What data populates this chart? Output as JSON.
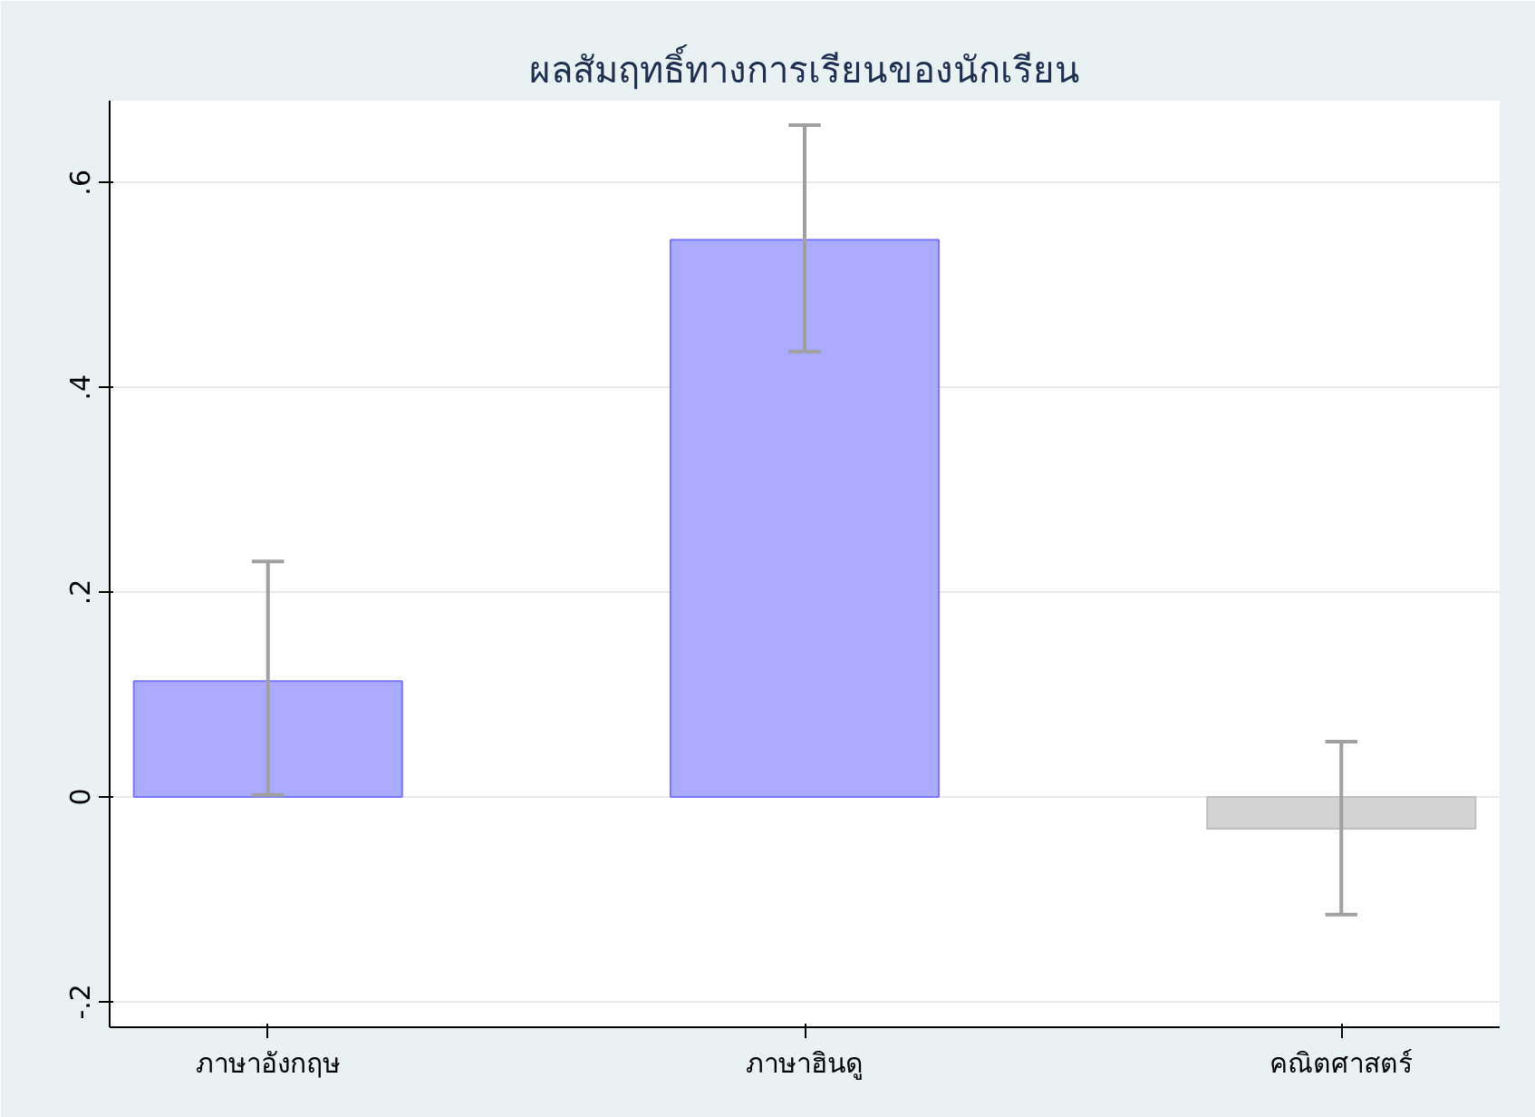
{
  "chart_data": {
    "type": "bar",
    "title": "ผลสัมฤทธิ์ทางการเรียนของนักเรียน",
    "categories": [
      "ภาษาอังกฤษ",
      "ภาษาฮินดู",
      "คณิตศาสตร์"
    ],
    "values": [
      0.113,
      0.544,
      -0.031
    ],
    "colors": [
      "#aaaaff",
      "#aaaaff",
      "#d3d3d3"
    ],
    "errors": [
      [
        0.002,
        0.23
      ],
      [
        0.435,
        0.656
      ],
      [
        -0.115,
        0.054
      ]
    ],
    "ylim": [
      -0.225,
      0.68
    ],
    "yticks": [
      {
        "value": -0.2,
        "label": "-.2"
      },
      {
        "value": 0,
        "label": "0"
      },
      {
        "value": 0.2,
        "label": ".2"
      },
      {
        "value": 0.4,
        "label": ".4"
      },
      {
        "value": 0.6,
        "label": ".6"
      }
    ],
    "grid": "y"
  }
}
